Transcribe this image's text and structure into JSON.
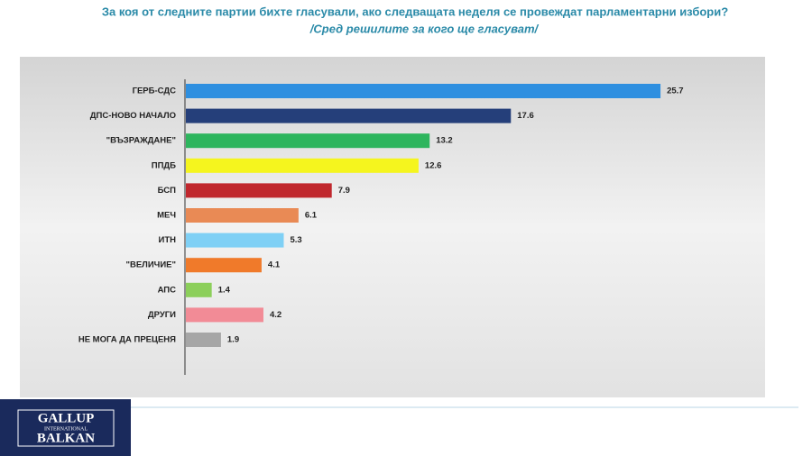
{
  "chart_data": {
    "type": "bar",
    "orientation": "horizontal",
    "title": "За коя от следните партии бихте  гласували,  ако следващата неделя се провеждат парламентарни избори?",
    "subtitle": "/Сред решилите за кого ще гласуват/",
    "categories": [
      "ГЕРБ-СДС",
      "ДПС-НОВО НАЧАЛО",
      "\"ВЪЗРАЖДАНЕ\"",
      "ППДБ",
      "БСП",
      "МЕЧ",
      "ИТН",
      "\"ВЕЛИЧИЕ\"",
      "АПС",
      "ДРУГИ",
      "НЕ МОГА ДА ПРЕЦЕНЯ"
    ],
    "values": [
      25.7,
      17.6,
      13.2,
      12.6,
      7.9,
      6.1,
      5.3,
      4.1,
      1.4,
      4.2,
      1.9
    ],
    "colors": [
      "#2e8fe0",
      "#253f7a",
      "#2db55d",
      "#f5f51e",
      "#c0272d",
      "#e98a55",
      "#7fd0f5",
      "#f07a2a",
      "#8ccf5a",
      "#f28b96",
      "#a6a6a6"
    ]
  },
  "logo": {
    "line1": "GALLUP",
    "line2": "INTERNATIONAL",
    "line3": "BALKAN"
  }
}
